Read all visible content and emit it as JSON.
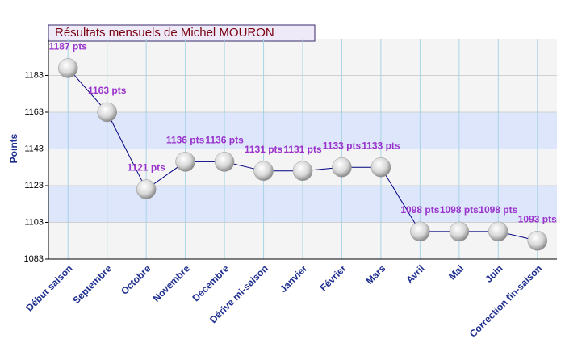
{
  "chart_data": {
    "type": "line",
    "title": "Résultats mensuels de Michel MOURON",
    "y_label": "Points",
    "categories": [
      "Début saison",
      "Septembre",
      "Octobre",
      "Novembre",
      "Décembre",
      "Dérive mi-saison",
      "Janvier",
      "Février",
      "Mars",
      "Avril",
      "Mai",
      "Juin",
      "Correction fin-saison"
    ],
    "values": [
      1187,
      1163,
      1121,
      1136,
      1136,
      1131,
      1131,
      1133,
      1133,
      1098,
      1098,
      1098,
      1093
    ],
    "value_labels": [
      "1187 pts",
      "1163 pts",
      "1121 pts",
      "1136 pts",
      "1136 pts",
      "1131 pts",
      "1131 pts",
      "1133 pts",
      "1133 pts",
      "1098 pts",
      "1098 pts",
      "1098 pts",
      "1093 pts"
    ],
    "color": "#000080",
    "label_color": "#9933cc",
    "ylim": [
      1083,
      1203
    ],
    "yticks": [
      1083,
      1103,
      1123,
      1143,
      1163,
      1183
    ],
    "grid": true
  }
}
